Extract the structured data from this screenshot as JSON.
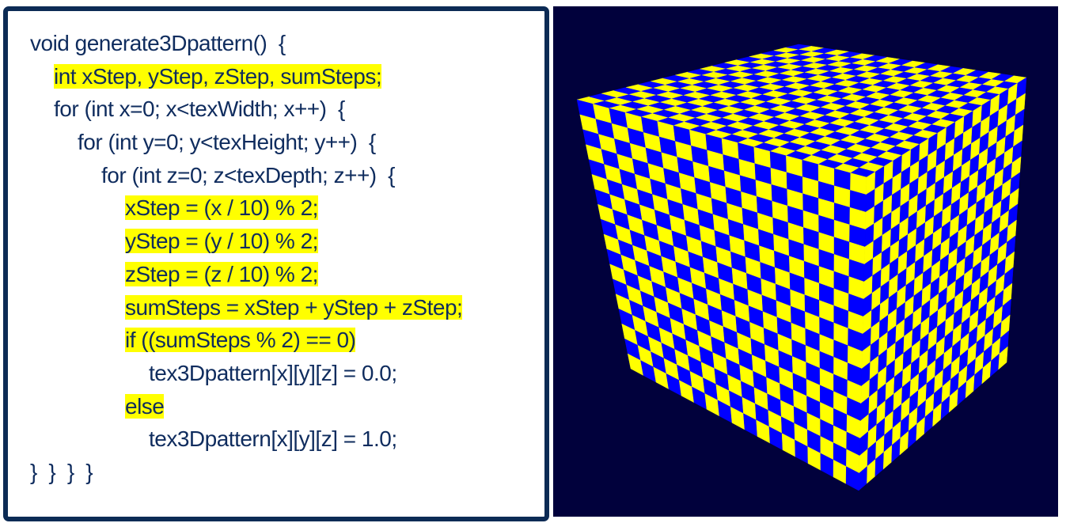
{
  "code": {
    "lines": [
      {
        "indent": 0,
        "text": "void generate3Dpattern()  {",
        "highlight": false
      },
      {
        "indent": 1,
        "text": "int xStep, yStep, zStep, sumSteps;",
        "highlight": true
      },
      {
        "indent": 1,
        "text": "for (int x=0; x<texWidth; x++)  {",
        "highlight": false
      },
      {
        "indent": 2,
        "text": "for (int y=0; y<texHeight; y++)  {",
        "highlight": false
      },
      {
        "indent": 3,
        "text": "for (int z=0; z<texDepth; z++)  {",
        "highlight": false
      },
      {
        "indent": 4,
        "text": "xStep = (x / 10) % 2;",
        "highlight": true
      },
      {
        "indent": 4,
        "text": "yStep = (y / 10) % 2;",
        "highlight": true
      },
      {
        "indent": 4,
        "text": "zStep = (z / 10) % 2;",
        "highlight": true
      },
      {
        "indent": 4,
        "text": "sumSteps = xStep + yStep + zStep;",
        "highlight": true
      },
      {
        "indent": 4,
        "text": "if ((sumSteps % 2) == 0)",
        "highlight": true
      },
      {
        "indent": 5,
        "text": "tex3Dpattern[x][y][z] = 0.0;",
        "highlight": false
      },
      {
        "indent": 4,
        "text": "else",
        "highlight": true
      },
      {
        "indent": 5,
        "text": "tex3Dpattern[x][y][z] = 1.0;",
        "highlight": false
      },
      {
        "indent": 0,
        "text": "}  }  }  }",
        "highlight": false
      }
    ]
  },
  "render": {
    "colors": {
      "background": "#01013c",
      "checker_a": "#ffff00",
      "checker_b": "#0000ff",
      "code_text": "#0f2c5e",
      "highlight": "#ffff00",
      "panel_border": "#0c2b55"
    },
    "checker_cells_per_edge": 18
  }
}
